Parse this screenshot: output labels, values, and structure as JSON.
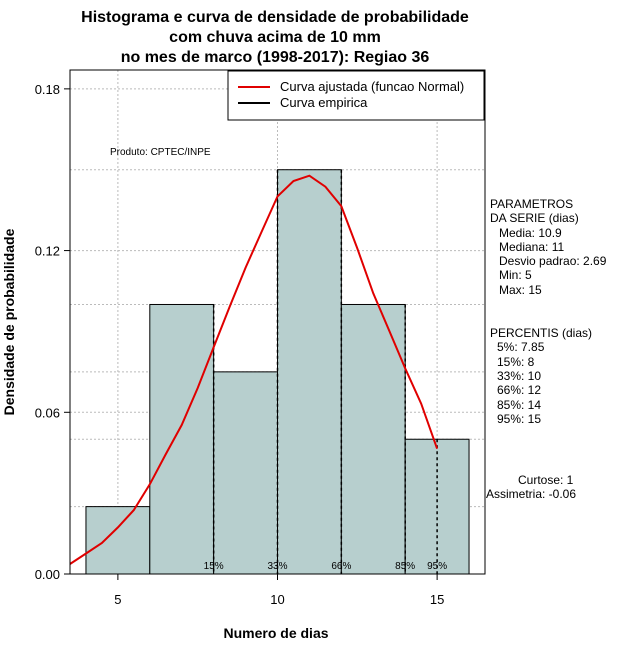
{
  "chart_data": {
    "type": "bar",
    "title": [
      "Histograma e curva de densidade de probabilidade",
      "com chuva acima de 10 mm",
      "no mes de marco (1998-2017): Regiao 36"
    ],
    "xlabel": "Numero de dias",
    "ylabel": "Densidade de probabilidade",
    "xlim": [
      3.5,
      16.5
    ],
    "ylim": [
      0,
      0.187
    ],
    "x_ticks": [
      5,
      10,
      15
    ],
    "y_ticks": [
      0.0,
      0.06,
      0.12,
      0.18
    ],
    "y_tick_labels": [
      "0.00",
      "0.06",
      "0.12",
      "0.18"
    ],
    "bins": [
      {
        "x0": 4,
        "x1": 6,
        "density": 0.025
      },
      {
        "x0": 6,
        "x1": 8,
        "density": 0.1
      },
      {
        "x0": 8,
        "x1": 10,
        "density": 0.075
      },
      {
        "x0": 10,
        "x1": 12,
        "density": 0.15
      },
      {
        "x0": 12,
        "x1": 14,
        "density": 0.1
      },
      {
        "x0": 14,
        "x1": 16,
        "density": 0.05
      }
    ],
    "bar_color": "#b7cfce",
    "grid": true,
    "fitted_curve": {
      "name": "Curva ajustada (funcao Normal)",
      "color": "#e00000",
      "x": [
        3.5,
        4,
        4.5,
        5,
        5.5,
        6,
        6.5,
        7,
        7.5,
        8,
        8.5,
        9,
        9.5,
        10,
        10.5,
        11,
        11.5,
        12,
        12.5,
        13,
        13.5,
        14,
        14.5,
        15
      ],
      "y": [
        0.0037,
        0.0076,
        0.0115,
        0.0173,
        0.0237,
        0.0333,
        0.0445,
        0.0553,
        0.069,
        0.0842,
        0.0991,
        0.1137,
        0.1269,
        0.1401,
        0.1458,
        0.1478,
        0.1437,
        0.1365,
        0.1208,
        0.1041,
        0.0903,
        0.0763,
        0.0632,
        0.0465
      ]
    },
    "empirical_curve_legend": "Curva empirica",
    "legend_position": "top-right",
    "percentiles": [
      {
        "label": "15%",
        "x": 8
      },
      {
        "label": "33%",
        "x": 10
      },
      {
        "label": "66%",
        "x": 12
      },
      {
        "label": "85%",
        "x": 14
      },
      {
        "label": "95%",
        "x": 15
      }
    ],
    "annotation": "Produto: CPTEC/INPE",
    "stats": {
      "header1": "PARAMETROS",
      "header2": "DA SERIE (dias)",
      "lines": [
        "Media: 10.9",
        "Mediana: 11",
        "Desvio padrao: 2.69",
        "Min: 5",
        "Max: 15"
      ]
    },
    "percentis_block": {
      "header": "PERCENTIS (dias)",
      "lines": [
        "5%: 7.85",
        "15%: 8",
        "33%: 10",
        "66%: 12",
        "85%: 14",
        "95%: 15"
      ]
    },
    "shape": {
      "curtose": "Curtose: 1",
      "assimetria": "Assimetria: -0.06"
    }
  }
}
